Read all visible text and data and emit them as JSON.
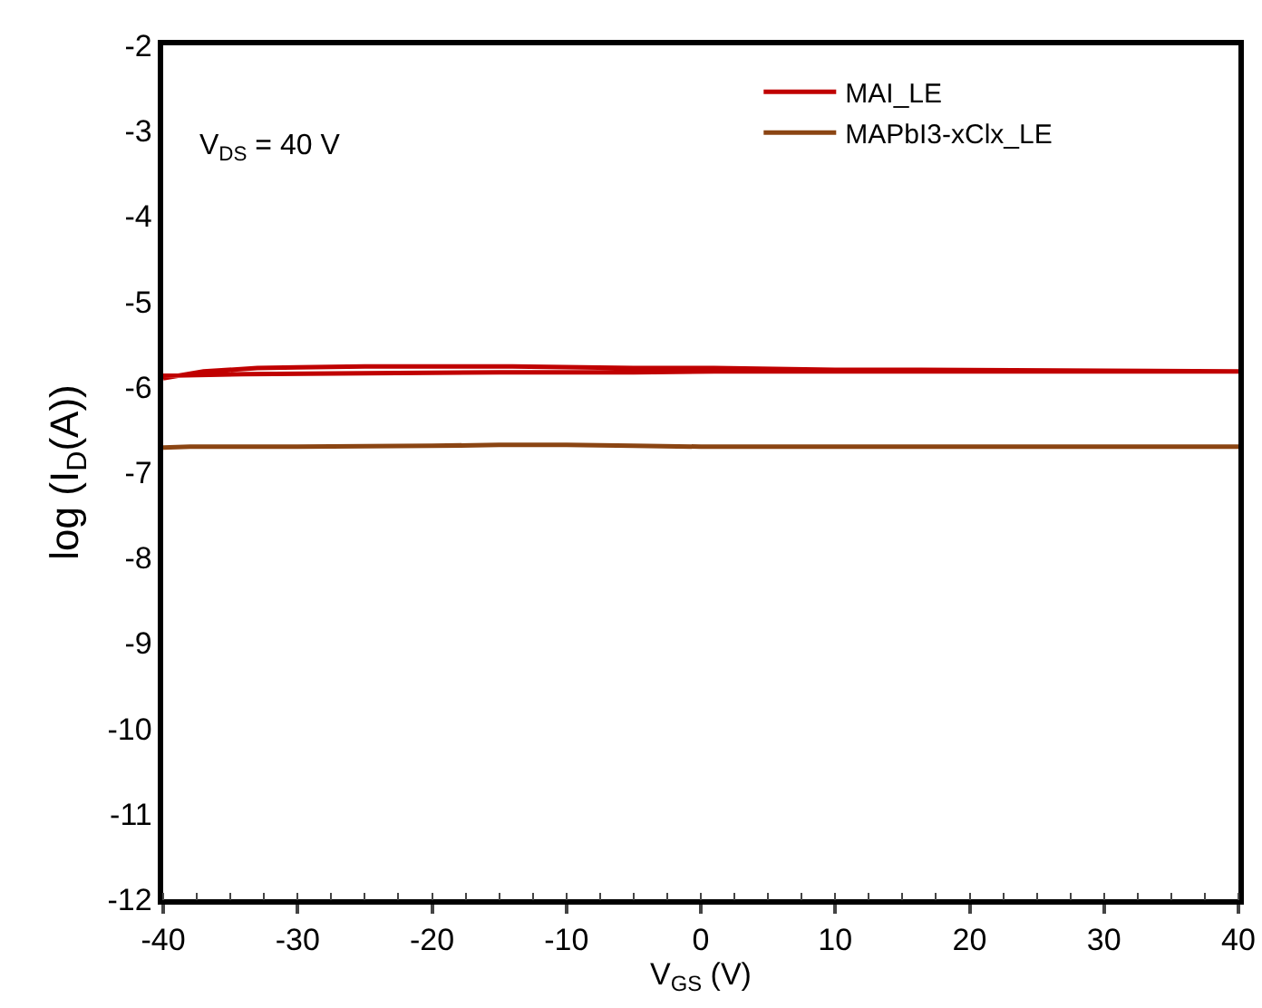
{
  "chart_data": {
    "type": "line",
    "xlabel": "V$_{GS}$ (V)",
    "ylabel": "log (I$_{D}$(A))",
    "annotations": [
      "V$_{DS}$ = 40 V"
    ],
    "xlim": [
      -40,
      40
    ],
    "xticks": [
      -40,
      -30,
      -20,
      -10,
      0,
      10,
      20,
      30,
      40
    ],
    "ylim": [
      -12,
      -2
    ],
    "yticks": [
      -12,
      -11,
      -10,
      -9,
      -8,
      -7,
      -6,
      -5,
      -4,
      -3,
      -2
    ],
    "grid": false,
    "legend": "top right",
    "marker": "none",
    "line_style": "solid",
    "series": [
      {
        "name": "MAI_LE",
        "color": "#c00000",
        "x": [
          -40,
          -34,
          -25,
          -15,
          -5,
          1,
          10,
          20,
          30,
          40,
          30,
          16,
          10,
          1,
          -5,
          -14,
          -20,
          -25,
          -30,
          -33,
          -37,
          -40
        ],
        "values": [
          -5.87,
          -5.85,
          -5.84,
          -5.83,
          -5.83,
          -5.82,
          -5.82,
          -5.82,
          -5.82,
          -5.82,
          -5.81,
          -5.8,
          -5.8,
          -5.78,
          -5.78,
          -5.76,
          -5.76,
          -5.76,
          -5.77,
          -5.78,
          -5.82,
          -5.9
        ]
      },
      {
        "name": "MAPbI3-xClx_LE",
        "color": "#8b4513",
        "x": [
          -40,
          -38,
          -30,
          -20,
          -15,
          -10,
          -5,
          0,
          10,
          20,
          30,
          40
        ],
        "values": [
          -6.71,
          -6.7,
          -6.7,
          -6.69,
          -6.68,
          -6.68,
          -6.69,
          -6.7,
          -6.7,
          -6.7,
          -6.7,
          -6.7
        ]
      }
    ]
  }
}
